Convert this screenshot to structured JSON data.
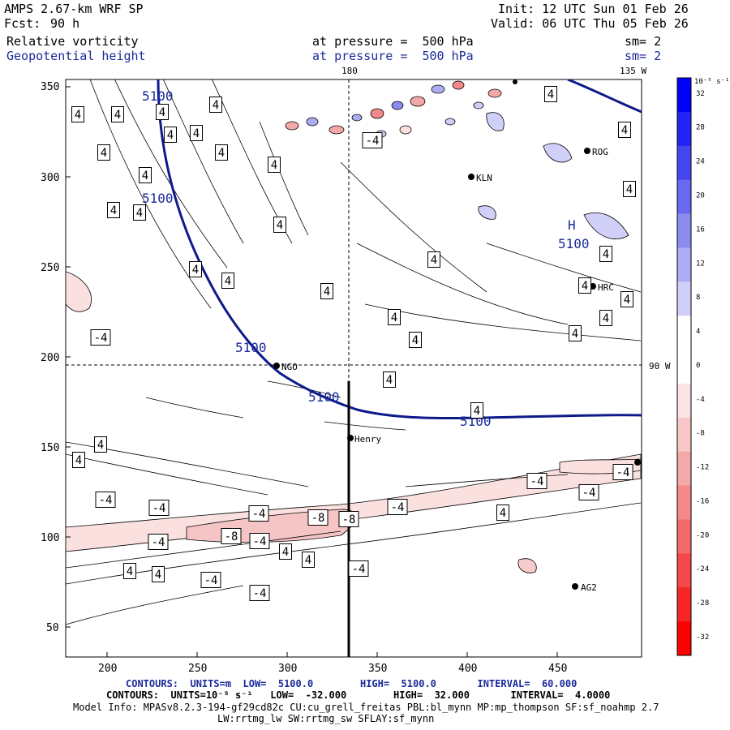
{
  "header": {
    "model": "AMPS 2.67-km WRF SP",
    "init": "Init: 12 UTC Sun 01 Feb 26",
    "fcst_label": "Fcst:",
    "fcst_value": "90 h",
    "valid": "Valid: 06 UTC Thu 05 Feb 26",
    "field1": "Relative vorticity",
    "field1_pressure": "at pressure =  500 hPa",
    "field1_sm": "sm= 2",
    "field2": "Geopotential height",
    "field2_pressure": "at pressure =  500 hPa",
    "field2_sm": "sm= 2"
  },
  "map": {
    "x_ticks": [
      "200",
      "250",
      "300",
      "350",
      "400",
      "450"
    ],
    "y_ticks": [
      "350",
      "300",
      "250",
      "200",
      "150",
      "100",
      "50"
    ],
    "meridian_top": "180",
    "meridian_135": "135 W",
    "meridian_90": "90 W",
    "height_contour_label": "5100",
    "pressure_label_H": "H",
    "stations": [
      {
        "name": "ROG"
      },
      {
        "name": "KLN"
      },
      {
        "name": "HRC"
      },
      {
        "name": "NGO"
      },
      {
        "name": "Henry"
      },
      {
        "name": "AG2"
      }
    ],
    "vort_labels": {
      "pos": "4",
      "neg4": "-4",
      "neg8": "-8"
    }
  },
  "colorbar": {
    "units": "10⁻⁵ s⁻¹",
    "ticks": [
      "32",
      "28",
      "24",
      "20",
      "16",
      "12",
      "8",
      "4",
      "0",
      "-4",
      "-8",
      "-12",
      "-16",
      "-20",
      "-24",
      "-28",
      "-32"
    ],
    "colors": [
      "#0000ff",
      "#2323f5",
      "#4545f0",
      "#6868f0",
      "#8c8cf0",
      "#adadf5",
      "#cfcff8",
      "#ffffff",
      "#ffffff",
      "#fbe3e3",
      "#f8c8c8",
      "#f5a8a8",
      "#f58888",
      "#f46a6a",
      "#f54848",
      "#f72626",
      "#ff0000"
    ]
  },
  "footer": {
    "line1": "CONTOURS:  UNITS=m  LOW=  5100.0        HIGH=  5100.0       INTERVAL=  60.000",
    "line2": "CONTOURS:  UNITS=10⁻⁵ s⁻¹   LOW=  -32.000        HIGH=  32.000       INTERVAL=  4.0000",
    "line3": "Model Info: MPASv8.2.3-194-gf29cd82c CU:cu_grell_freitas PBL:bl_mynn MP:mp_thompson SF:sf_noahmp 2.7",
    "line4": "LW:rrtmg_lw SW:rrtmg_sw SFLAY:sf_mynn"
  }
}
